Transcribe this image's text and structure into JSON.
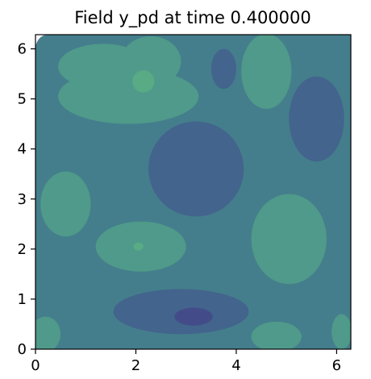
{
  "chart_data": {
    "type": "heatmap",
    "title": "Field y_pd at time 0.400000",
    "xlabel": "",
    "ylabel": "",
    "xlim": [
      0,
      6.283
    ],
    "ylim": [
      0,
      6.283
    ],
    "x_ticks": [
      "0",
      "2",
      "4",
      "6"
    ],
    "y_ticks": [
      "0",
      "1",
      "2",
      "3",
      "4",
      "5",
      "6"
    ],
    "x_tick_values": [
      0,
      2,
      4,
      6
    ],
    "y_tick_values": [
      0,
      1,
      2,
      3,
      4,
      5,
      6
    ],
    "grid": false,
    "colormap": "viridis",
    "colors": {
      "background": "#447e8c",
      "low": "#43648c",
      "very_low": "#434c88",
      "high": "#4f9a8a",
      "very_high": "#58ab85",
      "blank": "#ffffff"
    },
    "regions": [
      {
        "level": "high",
        "cx": 1.85,
        "cy": 5.05,
        "rx": 1.4,
        "ry": 0.55
      },
      {
        "level": "high",
        "cx": 1.35,
        "cy": 5.65,
        "rx": 0.9,
        "ry": 0.45
      },
      {
        "level": "high",
        "cx": 2.3,
        "cy": 5.75,
        "rx": 0.6,
        "ry": 0.5
      },
      {
        "level": "very_high",
        "cx": 2.15,
        "cy": 5.35,
        "rx": 0.22,
        "ry": 0.22
      },
      {
        "level": "low",
        "cx": 3.2,
        "cy": 3.6,
        "rx": 0.95,
        "ry": 0.95
      },
      {
        "level": "low",
        "cx": 5.6,
        "cy": 4.6,
        "rx": 0.55,
        "ry": 0.85
      },
      {
        "level": "low",
        "cx": 3.75,
        "cy": 5.6,
        "rx": 0.25,
        "ry": 0.4
      },
      {
        "level": "high",
        "cx": 4.6,
        "cy": 5.55,
        "rx": 0.5,
        "ry": 0.75
      },
      {
        "level": "high",
        "cx": 0.6,
        "cy": 2.9,
        "rx": 0.5,
        "ry": 0.65
      },
      {
        "level": "high",
        "cx": 2.1,
        "cy": 2.05,
        "rx": 0.9,
        "ry": 0.5
      },
      {
        "level": "very_high",
        "cx": 2.05,
        "cy": 2.05,
        "rx": 0.1,
        "ry": 0.08
      },
      {
        "level": "high",
        "cx": 5.05,
        "cy": 2.2,
        "rx": 0.75,
        "ry": 0.9
      },
      {
        "level": "low",
        "cx": 2.9,
        "cy": 0.75,
        "rx": 1.35,
        "ry": 0.45
      },
      {
        "level": "very_low",
        "cx": 3.15,
        "cy": 0.65,
        "rx": 0.38,
        "ry": 0.18
      },
      {
        "level": "high",
        "cx": 0.2,
        "cy": 0.3,
        "rx": 0.3,
        "ry": 0.35
      },
      {
        "level": "high",
        "cx": 4.8,
        "cy": 0.25,
        "rx": 0.5,
        "ry": 0.3
      },
      {
        "level": "high",
        "cx": 6.1,
        "cy": 0.35,
        "rx": 0.2,
        "ry": 0.35
      }
    ]
  }
}
